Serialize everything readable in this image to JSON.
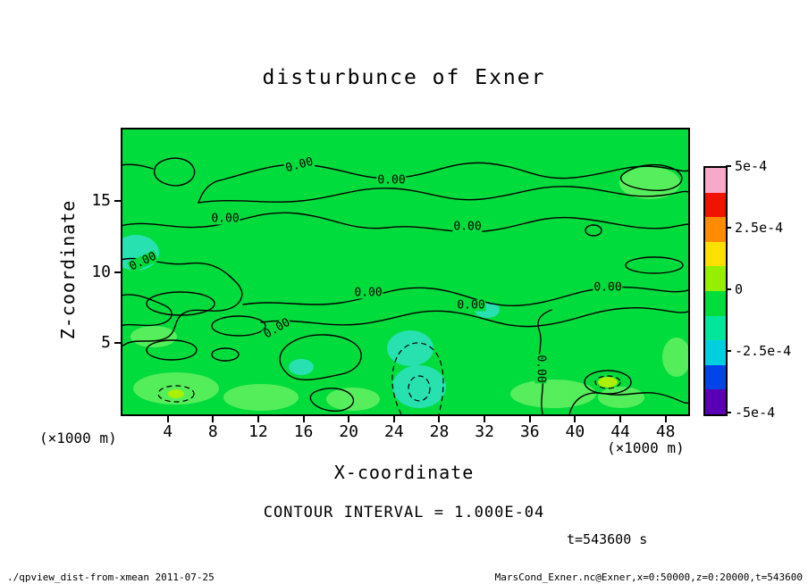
{
  "page": {
    "footer_left": "./qpview_dist-from-xmean  2011-07-25",
    "footer_right": "MarsCond_Exner.nc@Exner,x=0:50000,z=0:20000,t=543600"
  },
  "chart_data": {
    "type": "heatmap",
    "variant": "filled-contour-plot",
    "title": "disturbunce of Exner",
    "xlabel": "X-coordinate",
    "ylabel": "Z-coordinate",
    "x_unit_label": "(×1000 m)",
    "y_unit_label": "(×1000 m)",
    "xlim": [
      0,
      50
    ],
    "ylim": [
      0,
      20
    ],
    "x_ticks": [
      4,
      8,
      12,
      16,
      20,
      24,
      28,
      32,
      36,
      40,
      44,
      48
    ],
    "y_ticks": [
      5,
      10,
      15
    ],
    "grid": false,
    "contour_interval": 0.0001,
    "contour_interval_label": "CONTOUR INTERVAL = 1.000E-04",
    "time_label": "t=543600 s",
    "field_summary": "Exner function disturbance over x=0-50 km, z=0-20 km; values mostly within ±1e-4 (green band around 0), solid zero contours labeled 0.00 meandering across domain, dashed negative contours near x=24-28 km at low levels and near x=7 and x=43 km near the surface; small positive (light green / yellow-green) patches near the surface and upper right.",
    "zero_contour_level": 0,
    "colorbar": {
      "min": -0.0005,
      "max": 0.0005,
      "tick_labels": [
        "5e-4",
        "2.5e-4",
        "0",
        "-2.5e-4",
        "-5e-4"
      ],
      "colors_top_to_bottom": [
        "#F8A8C8",
        "#F01400",
        "#FF8C00",
        "#FFE000",
        "#96EE00",
        "#00DC3C",
        "#00E69B",
        "#00CFE0",
        "#0044E8",
        "#5A00B4"
      ]
    },
    "field_colors": {
      "base_green": "#00DC3C",
      "light_green": "#5FF05F",
      "teal": "#2EE2C4",
      "yellow_green": "#AAF000"
    },
    "contour_labels": [
      {
        "text": "0.00",
        "x": 335,
        "y": 185,
        "rot": -15
      },
      {
        "text": "0.00",
        "x": 438,
        "y": 202,
        "rot": 0
      },
      {
        "text": "0.00",
        "x": 252,
        "y": 245,
        "rot": 0
      },
      {
        "text": "0.00",
        "x": 523,
        "y": 254,
        "rot": 0
      },
      {
        "text": "0.00",
        "x": 160,
        "y": 293,
        "rot": -25
      },
      {
        "text": "0.00",
        "x": 412,
        "y": 328,
        "rot": 0
      },
      {
        "text": "0.00",
        "x": 527,
        "y": 342,
        "rot": 0
      },
      {
        "text": "0.00",
        "x": 680,
        "y": 322,
        "rot": 0
      },
      {
        "text": "0.00",
        "x": 310,
        "y": 368,
        "rot": -30
      },
      {
        "text": "0.00",
        "x": 605,
        "y": 413,
        "rot": 90
      }
    ]
  }
}
